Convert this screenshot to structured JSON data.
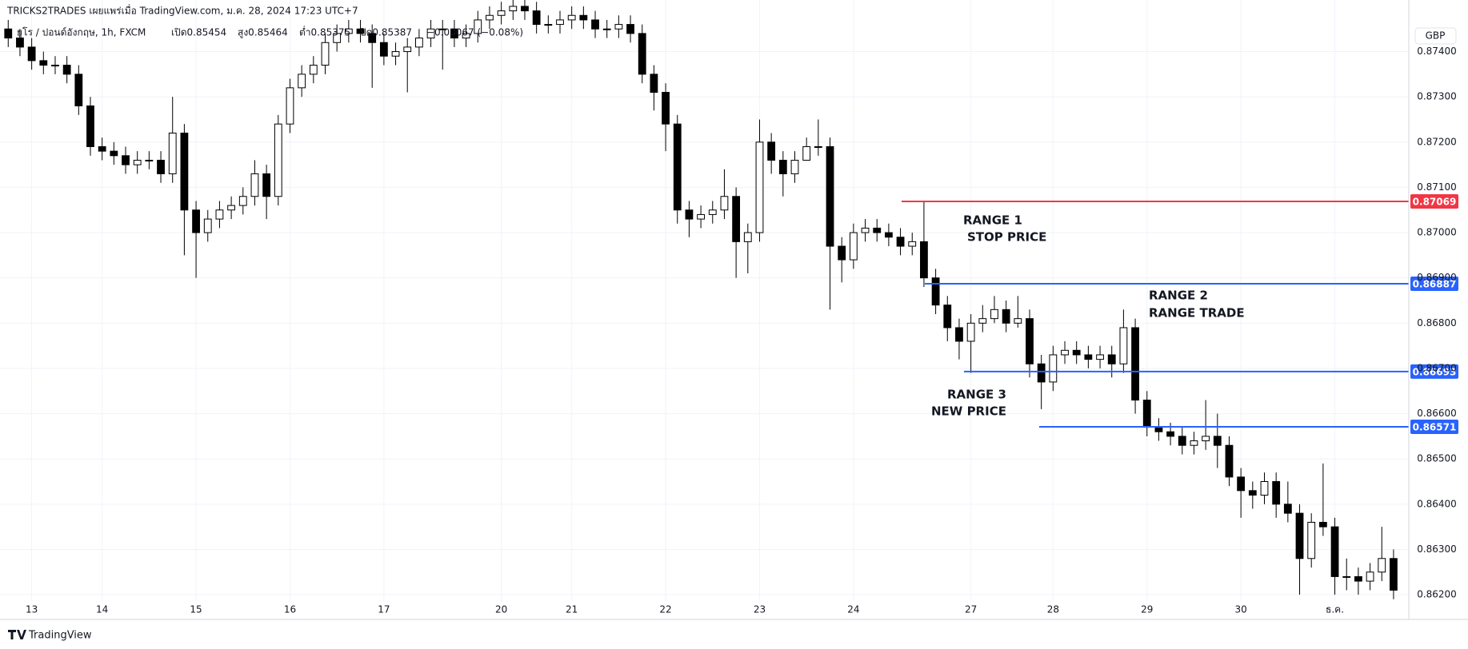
{
  "header": {
    "publisher": "TRICKS2TRADES เผยแพร่เมื่อ TradingView.com, ม.ค. 28, 2024 17:23 UTC+7",
    "symbol": "ยูโร / ปอนด์อังกฤษ, 1h, FXCM",
    "open": "เปิด0.85454",
    "high": "สูง0.85464",
    "low": "ต่ำ0.85375",
    "close": "ปิด0.85387",
    "change": "−0.00067 (−0.08%)"
  },
  "currency": "GBP",
  "footer": "TradingView",
  "chart_data": {
    "type": "candlestick",
    "up_color": "#ffffff",
    "down_color": "#000000",
    "grid": true,
    "categories": [
      null,
      null,
      "13",
      null,
      null,
      null,
      null,
      null,
      "14",
      null,
      null,
      null,
      null,
      null,
      null,
      null,
      "15",
      null,
      null,
      null,
      null,
      null,
      null,
      null,
      "16",
      null,
      null,
      null,
      null,
      null,
      null,
      null,
      "17",
      null,
      null,
      null,
      null,
      null,
      null,
      null,
      null,
      null,
      "20",
      null,
      null,
      null,
      null,
      null,
      "21",
      null,
      null,
      null,
      null,
      null,
      null,
      null,
      "22",
      null,
      null,
      null,
      null,
      null,
      null,
      null,
      "23",
      null,
      null,
      null,
      null,
      null,
      null,
      null,
      "24",
      null,
      null,
      null,
      null,
      null,
      null,
      null,
      null,
      null,
      "27",
      null,
      null,
      null,
      null,
      null,
      null,
      "28",
      null,
      null,
      null,
      null,
      null,
      null,
      null,
      "29",
      null,
      null,
      null,
      null,
      null,
      null,
      null,
      "30",
      null,
      null,
      null,
      null,
      null,
      null,
      null,
      "ธ.ค.",
      null,
      null,
      null,
      null,
      null
    ],
    "open": [
      0.8745,
      0.8743,
      0.8741,
      0.8738,
      0.8737,
      0.8737,
      0.8735,
      0.8728,
      0.8719,
      0.8718,
      0.8717,
      0.8715,
      0.8716,
      0.8716,
      0.8713,
      0.8722,
      0.8705,
      0.87,
      0.8703,
      0.8705,
      0.8706,
      0.8708,
      0.8713,
      0.8708,
      0.8724,
      0.8732,
      0.8735,
      0.8737,
      0.8742,
      0.8744,
      0.8745,
      0.8744,
      0.8742,
      0.8739,
      0.874,
      0.8741,
      0.8743,
      0.8745,
      0.8745,
      0.8743,
      0.8744,
      0.8747,
      0.8748,
      0.8749,
      0.875,
      0.8749,
      0.8746,
      0.8746,
      0.8747,
      0.8748,
      0.8747,
      0.8745,
      0.8745,
      0.8746,
      0.8744,
      0.8735,
      0.8731,
      0.8724,
      0.8705,
      0.8703,
      0.8704,
      0.8705,
      0.8708,
      0.8698,
      0.87,
      0.872,
      0.8716,
      0.8713,
      0.8716,
      0.8719,
      0.8719,
      0.8697,
      0.8694,
      0.87,
      0.8701,
      0.87,
      0.8699,
      0.8697,
      0.8698,
      0.869,
      0.8684,
      0.8679,
      0.8676,
      0.868,
      0.8681,
      0.8683,
      0.868,
      0.8681,
      0.8671,
      0.8667,
      0.8673,
      0.8674,
      0.8673,
      0.8672,
      0.8673,
      0.8671,
      0.8679,
      0.8663,
      0.8657,
      0.8656,
      0.8655,
      0.8653,
      0.8654,
      0.8655,
      0.8653,
      0.8646,
      0.8643,
      0.8642,
      0.8645,
      0.864,
      0.8638,
      0.8628,
      0.8636,
      0.8635,
      0.8624,
      0.8624,
      0.8623,
      0.8625,
      0.8628
    ],
    "high": [
      0.8747,
      0.8745,
      0.8743,
      0.874,
      0.8739,
      0.8739,
      0.8737,
      0.873,
      0.8721,
      0.872,
      0.8719,
      0.8718,
      0.8718,
      0.8718,
      0.873,
      0.8724,
      0.8707,
      0.8705,
      0.8707,
      0.8708,
      0.871,
      0.8716,
      0.8715,
      0.8726,
      0.8734,
      0.8737,
      0.8739,
      0.8744,
      0.8746,
      0.8747,
      0.8747,
      0.8746,
      0.8744,
      0.8742,
      0.8743,
      0.8745,
      0.8747,
      0.8747,
      0.8747,
      0.8746,
      0.8749,
      0.875,
      0.8751,
      0.8752,
      0.8752,
      0.8751,
      0.8748,
      0.8749,
      0.875,
      0.875,
      0.8749,
      0.8747,
      0.8748,
      0.8748,
      0.8746,
      0.8737,
      0.8733,
      0.8726,
      0.8707,
      0.8706,
      0.8707,
      0.8714,
      0.871,
      0.8702,
      0.8725,
      0.8722,
      0.8718,
      0.8718,
      0.8721,
      0.8725,
      0.8721,
      0.8699,
      0.8702,
      0.8703,
      0.8703,
      0.8702,
      0.8701,
      0.87,
      0.8707,
      0.8692,
      0.8686,
      0.8681,
      0.8682,
      0.8684,
      0.8686,
      0.8685,
      0.8686,
      0.8683,
      0.8673,
      0.8675,
      0.8676,
      0.8676,
      0.8675,
      0.8675,
      0.8675,
      0.8683,
      0.8681,
      0.8665,
      0.8659,
      0.8658,
      0.8657,
      0.8656,
      0.8663,
      0.866,
      0.8655,
      0.8648,
      0.8645,
      0.8647,
      0.8647,
      0.8645,
      0.864,
      0.8638,
      0.8649,
      0.8637,
      0.8628,
      0.8626,
      0.8627,
      0.8635,
      0.863
    ],
    "low": [
      0.8741,
      0.8739,
      0.8736,
      0.8735,
      0.8735,
      0.8733,
      0.8726,
      0.8717,
      0.8716,
      0.8715,
      0.8713,
      0.8713,
      0.8714,
      0.8711,
      0.8711,
      0.8695,
      0.869,
      0.8698,
      0.8701,
      0.8703,
      0.8704,
      0.8706,
      0.8703,
      0.8706,
      0.8722,
      0.873,
      0.8733,
      0.8735,
      0.874,
      0.8742,
      0.8742,
      0.8732,
      0.8737,
      0.8737,
      0.8731,
      0.8739,
      0.8741,
      0.8736,
      0.8741,
      0.8741,
      0.8742,
      0.8745,
      0.8746,
      0.8747,
      0.8747,
      0.8744,
      0.8744,
      0.8744,
      0.8745,
      0.8745,
      0.8743,
      0.8743,
      0.8743,
      0.8742,
      0.8733,
      0.8727,
      0.8718,
      0.8702,
      0.8699,
      0.8701,
      0.8702,
      0.8703,
      0.869,
      0.8691,
      0.8698,
      0.8713,
      0.8708,
      0.8711,
      0.8717,
      0.8717,
      0.8683,
      0.8689,
      0.8692,
      0.8698,
      0.8698,
      0.8697,
      0.8695,
      0.8695,
      0.8688,
      0.8682,
      0.8676,
      0.8672,
      0.8669,
      0.8678,
      0.868,
      0.8678,
      0.8679,
      0.8668,
      0.8661,
      0.8665,
      0.8671,
      0.8671,
      0.867,
      0.867,
      0.8668,
      0.8669,
      0.866,
      0.8655,
      0.8654,
      0.8653,
      0.8651,
      0.8651,
      0.8652,
      0.8648,
      0.8644,
      0.8637,
      0.8639,
      0.864,
      0.8637,
      0.8636,
      0.862,
      0.8626,
      0.8633,
      0.862,
      0.8621,
      0.862,
      0.8621,
      0.8623,
      0.8619
    ],
    "close": [
      0.8743,
      0.8741,
      0.8738,
      0.8737,
      0.8737,
      0.8735,
      0.8728,
      0.8719,
      0.8718,
      0.8717,
      0.8715,
      0.8716,
      0.8716,
      0.8713,
      0.8722,
      0.8705,
      0.87,
      0.8703,
      0.8705,
      0.8706,
      0.8708,
      0.8713,
      0.8708,
      0.8724,
      0.8732,
      0.8735,
      0.8737,
      0.8742,
      0.8744,
      0.8745,
      0.8744,
      0.8742,
      0.8739,
      0.874,
      0.8741,
      0.8743,
      0.8745,
      0.8745,
      0.8743,
      0.8744,
      0.8747,
      0.8748,
      0.8749,
      0.875,
      0.8749,
      0.8746,
      0.8746,
      0.8747,
      0.8748,
      0.8747,
      0.8745,
      0.8745,
      0.8746,
      0.8744,
      0.8735,
      0.8731,
      0.8724,
      0.8705,
      0.8703,
      0.8704,
      0.8705,
      0.8708,
      0.8698,
      0.87,
      0.872,
      0.8716,
      0.8713,
      0.8716,
      0.8719,
      0.8719,
      0.8697,
      0.8694,
      0.87,
      0.8701,
      0.87,
      0.8699,
      0.8697,
      0.8698,
      0.869,
      0.8684,
      0.8679,
      0.8676,
      0.868,
      0.8681,
      0.8683,
      0.868,
      0.8681,
      0.8671,
      0.8667,
      0.8673,
      0.8674,
      0.8673,
      0.8672,
      0.8673,
      0.8671,
      0.8679,
      0.8663,
      0.8657,
      0.8656,
      0.8655,
      0.8653,
      0.8654,
      0.8655,
      0.8653,
      0.8646,
      0.8643,
      0.8642,
      0.8645,
      0.864,
      0.8638,
      0.8628,
      0.8636,
      0.8635,
      0.8624,
      0.8624,
      0.8623,
      0.8625,
      0.8628,
      0.8621
    ],
    "ylim": [
      0.86186,
      0.87514
    ],
    "yticks": [
      {
        "value": 0.862,
        "label": "0.86200"
      },
      {
        "value": 0.863,
        "label": "0.86300"
      },
      {
        "value": 0.864,
        "label": "0.86400"
      },
      {
        "value": 0.865,
        "label": "0.86500"
      },
      {
        "value": 0.866,
        "label": "0.86600"
      },
      {
        "value": 0.867,
        "label": "0.86700"
      },
      {
        "value": 0.868,
        "label": "0.86800"
      },
      {
        "value": 0.869,
        "label": "0.86900"
      },
      {
        "value": 0.87,
        "label": "0.87000"
      },
      {
        "value": 0.871,
        "label": "0.87100"
      },
      {
        "value": 0.872,
        "label": "0.87200"
      },
      {
        "value": 0.873,
        "label": "0.87300"
      },
      {
        "value": 0.874,
        "label": "0.87400"
      }
    ],
    "levels": [
      {
        "value": 0.87069,
        "color": "#f23645"
      },
      {
        "value": 0.86887,
        "color": "#2962ff"
      },
      {
        "value": 0.86693,
        "color": "#2962ff"
      },
      {
        "value": 0.86571,
        "color": "#2962ff"
      }
    ],
    "annotations": [
      {
        "lines": [
          "RANGE 1",
          "STOP PRICE"
        ]
      },
      {
        "lines": [
          "RANGE 2",
          "RANGE TRADE"
        ]
      },
      {
        "lines": [
          "RANGE 3",
          "NEW PRICE"
        ]
      }
    ]
  }
}
